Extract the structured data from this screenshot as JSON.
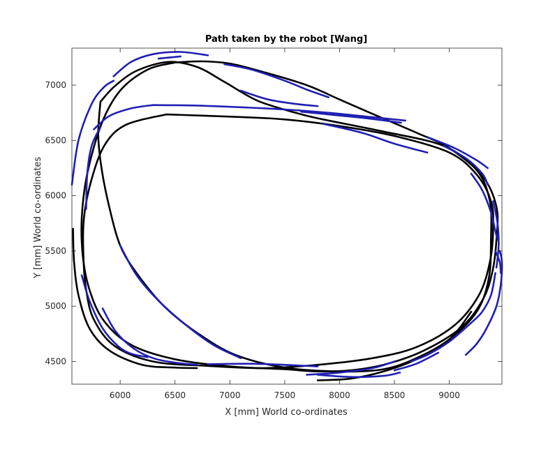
{
  "chart_data": {
    "type": "line",
    "title": "Path taken by the robot [Wang]",
    "xlabel": "X [mm] World co-ordinates",
    "ylabel": "Y [mm] World co-ordinates",
    "xlim": [
      5560,
      9480
    ],
    "ylim": [
      4295,
      7335
    ],
    "xticks": [
      6000,
      6500,
      7000,
      7500,
      8000,
      8500,
      9000
    ],
    "yticks": [
      4500,
      5000,
      5500,
      6000,
      6500,
      7000
    ],
    "grid": false,
    "series": [
      {
        "color": "#000000",
        "width": 2.6,
        "paths": [
          [
            [
              6420,
              6735
            ],
            [
              7000,
              6715
            ],
            [
              7500,
              6690
            ],
            [
              8000,
              6630
            ],
            [
              8500,
              6540
            ],
            [
              9000,
              6390
            ],
            [
              9250,
              6190
            ],
            [
              9380,
              5950
            ],
            [
              9400,
              5700
            ],
            [
              9370,
              5400
            ],
            [
              9270,
              5100
            ],
            [
              9050,
              4830
            ],
            [
              8700,
              4630
            ],
            [
              8300,
              4530
            ],
            [
              7800,
              4470
            ],
            [
              7300,
              4440
            ],
            [
              6800,
              4460
            ],
            [
              6300,
              4500
            ],
            [
              5950,
              4640
            ],
            [
              5760,
              4880
            ],
            [
              5690,
              5150
            ],
            [
              5665,
              5450
            ],
            [
              5670,
              5800
            ],
            [
              5740,
              6150
            ],
            [
              5860,
              6460
            ],
            [
              6050,
              6640
            ],
            [
              6420,
              6735
            ]
          ],
          [
            [
              6500,
              7205
            ],
            [
              6750,
              7215
            ],
            [
              7000,
              7195
            ],
            [
              7300,
              7120
            ],
            [
              7700,
              7000
            ],
            [
              8000,
              6870
            ],
            [
              8300,
              6740
            ],
            [
              8700,
              6570
            ],
            [
              9000,
              6430
            ],
            [
              9300,
              6180
            ],
            [
              9430,
              5900
            ],
            [
              9430,
              5600
            ],
            [
              9390,
              5300
            ],
            [
              9300,
              5050
            ],
            [
              9100,
              4800
            ],
            [
              8750,
              4590
            ],
            [
              8400,
              4470
            ],
            [
              8100,
              4420
            ],
            [
              7800,
              4410
            ],
            [
              7500,
              4430
            ],
            [
              7000,
              4455
            ],
            [
              6500,
              4520
            ],
            [
              6100,
              4650
            ],
            [
              5850,
              4870
            ],
            [
              5720,
              5150
            ],
            [
              5660,
              5450
            ],
            [
              5650,
              5800
            ],
            [
              5700,
              6200
            ],
            [
              5830,
              6650
            ],
            [
              6000,
              6950
            ],
            [
              6250,
              7140
            ],
            [
              6500,
              7205
            ]
          ],
          [
            [
              5820,
              6850
            ],
            [
              5800,
              6550
            ],
            [
              5830,
              6250
            ],
            [
              5900,
              5900
            ],
            [
              6000,
              5550
            ],
            [
              6150,
              5300
            ],
            [
              6400,
              5000
            ],
            [
              6700,
              4760
            ],
            [
              7050,
              4560
            ],
            [
              7500,
              4445
            ],
            [
              8000,
              4410
            ],
            [
              8400,
              4430
            ],
            [
              8700,
              4530
            ],
            [
              9000,
              4700
            ],
            [
              9250,
              4950
            ],
            [
              9360,
              5250
            ],
            [
              9380,
              5600
            ],
            [
              9370,
              5950
            ],
            [
              9250,
              6230
            ],
            [
              8950,
              6450
            ],
            [
              8400,
              6580
            ],
            [
              7850,
              6690
            ],
            [
              7600,
              6750
            ],
            [
              7250,
              6860
            ],
            [
              6950,
              7030
            ],
            [
              6700,
              7165
            ],
            [
              6440,
              7210
            ],
            [
              6150,
              7130
            ],
            [
              5950,
              6990
            ],
            [
              5820,
              6850
            ]
          ],
          [
            [
              5570,
              5700
            ],
            [
              5580,
              5400
            ],
            [
              5620,
              5100
            ],
            [
              5720,
              4800
            ],
            [
              5900,
              4600
            ],
            [
              6200,
              4470
            ],
            [
              6500,
              4445
            ],
            [
              6700,
              4440
            ]
          ],
          [
            [
              7800,
              4330
            ],
            [
              8100,
              4345
            ],
            [
              8400,
              4410
            ],
            [
              8700,
              4520
            ],
            [
              9000,
              4700
            ],
            [
              9200,
              4950
            ]
          ]
        ]
      },
      {
        "color": "#1f1fb4",
        "width": 2.6,
        "paths": [
          [
            [
              6300,
              6820
            ],
            [
              6700,
              6815
            ],
            [
              7100,
              6800
            ],
            [
              7500,
              6780
            ],
            [
              7900,
              6750
            ],
            [
              8300,
              6710
            ],
            [
              8600,
              6680
            ]
          ],
          [
            [
              5760,
              6600
            ],
            [
              5900,
              6720
            ],
            [
              6100,
              6790
            ],
            [
              6300,
              6820
            ]
          ],
          [
            [
              5690,
              5880
            ],
            [
              5700,
              6200
            ],
            [
              5740,
              6450
            ],
            [
              5820,
              6620
            ]
          ],
          [
            [
              5560,
              6100
            ],
            [
              5620,
              6500
            ],
            [
              5740,
              6830
            ],
            [
              5850,
              6980
            ],
            [
              5940,
              7040
            ]
          ],
          [
            [
              5940,
              7080
            ],
            [
              6100,
              7210
            ],
            [
              6300,
              7280
            ],
            [
              6550,
              7300
            ],
            [
              6800,
              7270
            ]
          ],
          [
            [
              6350,
              7240
            ],
            [
              6550,
              7260
            ]
          ],
          [
            [
              6950,
              7190
            ],
            [
              7200,
              7140
            ],
            [
              7500,
              7040
            ],
            [
              7700,
              6960
            ],
            [
              7900,
              6890
            ]
          ],
          [
            [
              7100,
              6950
            ],
            [
              7350,
              6870
            ],
            [
              7600,
              6830
            ],
            [
              7800,
              6810
            ]
          ],
          [
            [
              7650,
              6760
            ],
            [
              7950,
              6730
            ],
            [
              8250,
              6700
            ],
            [
              8560,
              6660
            ]
          ],
          [
            [
              7850,
              6650
            ],
            [
              8200,
              6570
            ],
            [
              8500,
              6470
            ],
            [
              8800,
              6390
            ]
          ],
          [
            [
              8800,
              6530
            ],
            [
              9050,
              6430
            ],
            [
              9250,
              6320
            ],
            [
              9350,
              6250
            ]
          ],
          [
            [
              8950,
              6450
            ],
            [
              9150,
              6340
            ],
            [
              9300,
              6200
            ],
            [
              9350,
              6100
            ]
          ],
          [
            [
              9200,
              6200
            ],
            [
              9300,
              6050
            ],
            [
              9380,
              5850
            ],
            [
              9420,
              5680
            ],
            [
              9440,
              5600
            ]
          ],
          [
            [
              9400,
              5950
            ],
            [
              9440,
              5750
            ],
            [
              9450,
              5550
            ],
            [
              9430,
              5350
            ]
          ],
          [
            [
              9420,
              5500
            ],
            [
              9460,
              5400
            ],
            [
              9470,
              5300
            ]
          ],
          [
            [
              9460,
              5500
            ],
            [
              9480,
              5400
            ],
            [
              9470,
              5200
            ],
            [
              9430,
              5000
            ],
            [
              9340,
              4800
            ],
            [
              9250,
              4660
            ],
            [
              9150,
              4560
            ]
          ],
          [
            [
              9420,
              5300
            ],
            [
              9380,
              5100
            ],
            [
              9300,
              4950
            ],
            [
              9200,
              4850
            ]
          ],
          [
            [
              9200,
              4850
            ],
            [
              9000,
              4680
            ],
            [
              8800,
              4560
            ],
            [
              8650,
              4500
            ]
          ],
          [
            [
              8900,
              4580
            ],
            [
              8700,
              4480
            ],
            [
              8500,
              4420
            ]
          ],
          [
            [
              8500,
              4500
            ],
            [
              8300,
              4440
            ],
            [
              8000,
              4400
            ],
            [
              7700,
              4380
            ]
          ],
          [
            [
              7800,
              4380
            ],
            [
              8100,
              4360
            ],
            [
              8400,
              4370
            ],
            [
              8550,
              4400
            ]
          ],
          [
            [
              6800,
              4475
            ],
            [
              7200,
              4480
            ],
            [
              7600,
              4465
            ],
            [
              7800,
              4455
            ]
          ],
          [
            [
              5650,
              5280
            ],
            [
              5720,
              5050
            ],
            [
              5840,
              4800
            ],
            [
              5980,
              4640
            ],
            [
              6100,
              4570
            ],
            [
              6250,
              4540
            ]
          ],
          [
            [
              5840,
              4980
            ],
            [
              5960,
              4770
            ],
            [
              6120,
              4620
            ],
            [
              6300,
              4530
            ],
            [
              6500,
              4490
            ],
            [
              6700,
              4470
            ]
          ],
          [
            [
              6000,
              5550
            ],
            [
              6150,
              5280
            ],
            [
              6350,
              5050
            ],
            [
              6600,
              4830
            ],
            [
              6850,
              4650
            ],
            [
              7100,
              4530
            ]
          ]
        ]
      }
    ]
  }
}
